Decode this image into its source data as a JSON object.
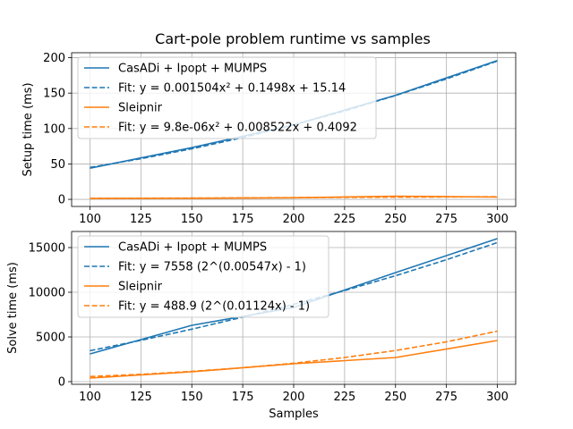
{
  "title": "Cart-pole problem runtime vs samples",
  "colors": {
    "casadi": "#1f77b4",
    "sleipnir": "#ff7f0e"
  },
  "chart_data": [
    {
      "type": "line",
      "ylabel": "Setup time (ms)",
      "xlabel": "",
      "xlim": [
        91,
        309
      ],
      "ylim": [
        -10,
        207
      ],
      "xticks": [
        100,
        125,
        150,
        175,
        200,
        225,
        250,
        275,
        300
      ],
      "yticks": [
        0,
        50,
        100,
        150,
        200
      ],
      "legend_position": "top-left",
      "series": [
        {
          "name": "CasADi + Ipopt + MUMPS",
          "color_key": "casadi",
          "style": "solid",
          "x": [
            100,
            150,
            200,
            250,
            300
          ],
          "y": [
            44,
            73,
            105,
            147,
            196
          ]
        },
        {
          "name": "Fit: y = 0.001504x² + 0.1498x + 15.14",
          "color_key": "casadi",
          "style": "dashed",
          "x": [
            100,
            125,
            150,
            175,
            200,
            225,
            250,
            275,
            300
          ],
          "y": [
            45.1,
            57.4,
            71.4,
            87.3,
            105.2,
            124.9,
            146.6,
            170.0,
            195.3
          ]
        },
        {
          "name": "Sleipnir",
          "color_key": "sleipnir",
          "style": "solid",
          "x": [
            100,
            150,
            200,
            250,
            300
          ],
          "y": [
            1.3,
            1.5,
            2.2,
            4.5,
            3.3
          ]
        },
        {
          "name": "Fit: y = 9.8e-06x² + 0.008522x + 0.4092",
          "color_key": "sleipnir",
          "style": "dashed",
          "x": [
            100,
            150,
            200,
            250,
            300
          ],
          "y": [
            1.4,
            1.9,
            2.5,
            3.1,
            3.8
          ]
        }
      ]
    },
    {
      "type": "line",
      "ylabel": "Solve time (ms)",
      "xlabel": "Samples",
      "xlim": [
        91,
        309
      ],
      "ylim": [
        -300,
        16800
      ],
      "xticks": [
        100,
        125,
        150,
        175,
        200,
        225,
        250,
        275,
        300
      ],
      "yticks": [
        0,
        5000,
        10000,
        15000
      ],
      "legend_position": "top-left",
      "series": [
        {
          "name": "CasADi + Ipopt + MUMPS",
          "color_key": "casadi",
          "style": "solid",
          "x": [
            100,
            150,
            200,
            250,
            300
          ],
          "y": [
            3100,
            6300,
            8300,
            12200,
            16000
          ]
        },
        {
          "name": "Fit: y = 7558 (2^(0.00547x) - 1)",
          "color_key": "casadi",
          "style": "dashed",
          "x": [
            100,
            125,
            150,
            175,
            200,
            225,
            250,
            275,
            300
          ],
          "y": [
            3460,
            4620,
            5870,
            7210,
            8650,
            10190,
            11850,
            13640,
            15560
          ]
        },
        {
          "name": "Sleipnir",
          "color_key": "sleipnir",
          "style": "solid",
          "x": [
            100,
            150,
            200,
            250,
            300
          ],
          "y": [
            400,
            1100,
            2000,
            2700,
            4600
          ]
        },
        {
          "name": "Fit: y = 488.9 (2^(0.01124x) - 1)",
          "color_key": "sleipnir",
          "style": "dashed",
          "x": [
            100,
            125,
            150,
            175,
            200,
            225,
            250,
            275,
            300
          ],
          "y": [
            570,
            820,
            1150,
            1560,
            2060,
            2700,
            3480,
            4450,
            5650
          ]
        }
      ]
    }
  ]
}
